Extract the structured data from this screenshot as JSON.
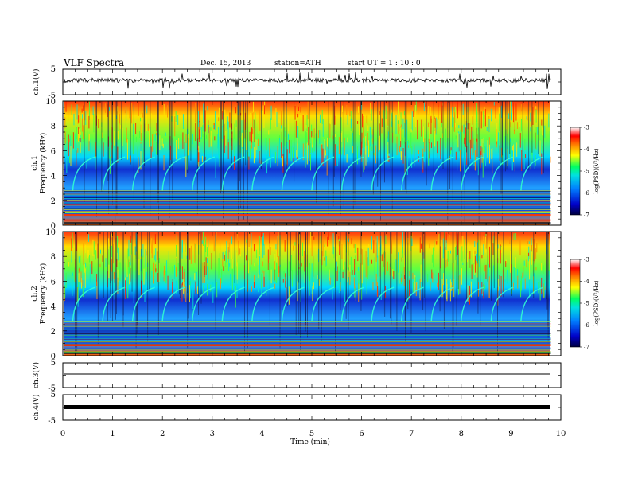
{
  "header": {
    "title": "VLF  Spectra",
    "date": "Dec. 15, 2013",
    "station": "station=ATH",
    "start": "start  UT  =   1 : 10 : 0"
  },
  "chart_data": [
    {
      "type": "line",
      "panel": "ch1-waveform",
      "ylabel": "ch.1(V)",
      "ylim": [
        -5,
        5
      ],
      "yticks": [
        "5",
        "-5"
      ],
      "xlim": [
        0,
        10
      ]
    },
    {
      "type": "heatmap",
      "panel": "ch1-spectrogram",
      "ylabel": [
        "ch.1",
        "Frequency  (kHz)"
      ],
      "ylim": [
        0,
        10
      ],
      "yticks": [
        "0",
        "2",
        "4",
        "6",
        "8",
        "10"
      ],
      "xlim": [
        0,
        10
      ],
      "data_end_min": 9.8,
      "colorbar": {
        "label": "log(PSD)(V²/Hz)",
        "range": [
          -7,
          -3
        ],
        "ticks": [
          "-3",
          "-4",
          "-5",
          "-6",
          "-7"
        ]
      }
    },
    {
      "type": "heatmap",
      "panel": "ch2-spectrogram",
      "ylabel": [
        "ch.2",
        "Frequency  (kHz)"
      ],
      "ylim": [
        0,
        10
      ],
      "yticks": [
        "0",
        "2",
        "4",
        "6",
        "8",
        "10"
      ],
      "xlim": [
        0,
        10
      ],
      "data_end_min": 9.8,
      "colorbar": {
        "label": "log(PSD)(V²/Hz)",
        "range": [
          -7,
          -3
        ],
        "ticks": [
          "-3",
          "-4",
          "-5",
          "-6",
          "-7"
        ]
      }
    },
    {
      "type": "line",
      "panel": "ch3-waveform",
      "ylabel": "ch.3(V)",
      "ylim": [
        -5,
        5
      ],
      "yticks": [
        "5",
        "-5"
      ],
      "xlim": [
        0,
        10
      ]
    },
    {
      "type": "line",
      "panel": "ch4-waveform",
      "ylabel": "ch.4(V)",
      "ylim": [
        -5,
        5
      ],
      "yticks": [
        "5",
        "-5"
      ],
      "xlim": [
        0,
        10
      ],
      "xlabel": "Time  (min)",
      "xticks": [
        "0",
        "1",
        "2",
        "3",
        "4",
        "5",
        "6",
        "7",
        "8",
        "9",
        "10"
      ]
    }
  ],
  "colors": {
    "axis": "#000000",
    "colormap": [
      "#0a0060",
      "#0000ff",
      "#00c8ff",
      "#00ff80",
      "#ffff00",
      "#ff8000",
      "#ff0000",
      "#ffffff"
    ]
  }
}
